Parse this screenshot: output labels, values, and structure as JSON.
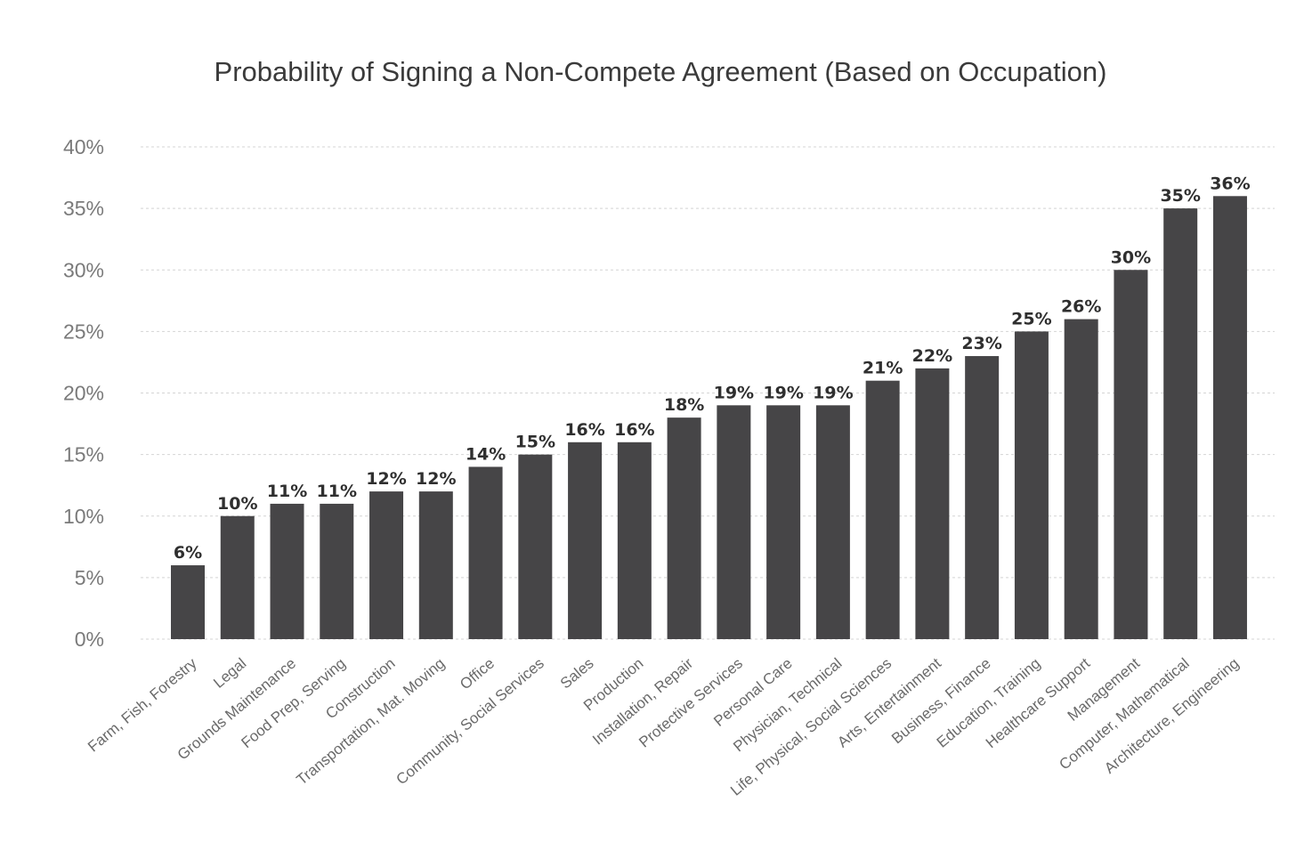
{
  "chart_data": {
    "type": "bar",
    "title": "Probability of Signing a Non-Compete Agreement (Based on Occupation)",
    "xlabel": "",
    "ylabel": "",
    "ylim": [
      0,
      40
    ],
    "y_ticks": [
      "0%",
      "5%",
      "10%",
      "15%",
      "20%",
      "25%",
      "30%",
      "35%",
      "40%"
    ],
    "y_tick_values": [
      0,
      5,
      10,
      15,
      20,
      25,
      30,
      35,
      40
    ],
    "grid": true,
    "categories": [
      "Farm, Fish, Forestry",
      "Legal",
      "Grounds Maintenance",
      "Food Prep, Serving",
      "Construction",
      "Transportation, Mat. Moving",
      "Office",
      "Community, Social Services",
      "Sales",
      "Production",
      "Installation, Repair",
      "Protective Services",
      "Personal Care",
      "Physician, Technical",
      "Life, Physical, Social Sciences",
      "Arts, Entertainment",
      "Business, Finance",
      "Education, Training",
      "Healthcare Support",
      "Management",
      "Computer, Mathematical",
      "Architecture, Engineering"
    ],
    "values": [
      6,
      10,
      11,
      11,
      12,
      12,
      14,
      15,
      16,
      16,
      18,
      19,
      19,
      19,
      21,
      22,
      23,
      25,
      26,
      30,
      35,
      36
    ],
    "value_labels": [
      "6%",
      "10%",
      "11%",
      "11%",
      "12%",
      "12%",
      "14%",
      "15%",
      "16%",
      "16%",
      "18%",
      "19%",
      "19%",
      "19%",
      "21%",
      "22%",
      "23%",
      "25%",
      "26%",
      "30%",
      "35%",
      "36%"
    ],
    "colors": {
      "bar": "#464547",
      "grid": "#d4d4d4",
      "title": "#3a3a3a"
    }
  }
}
